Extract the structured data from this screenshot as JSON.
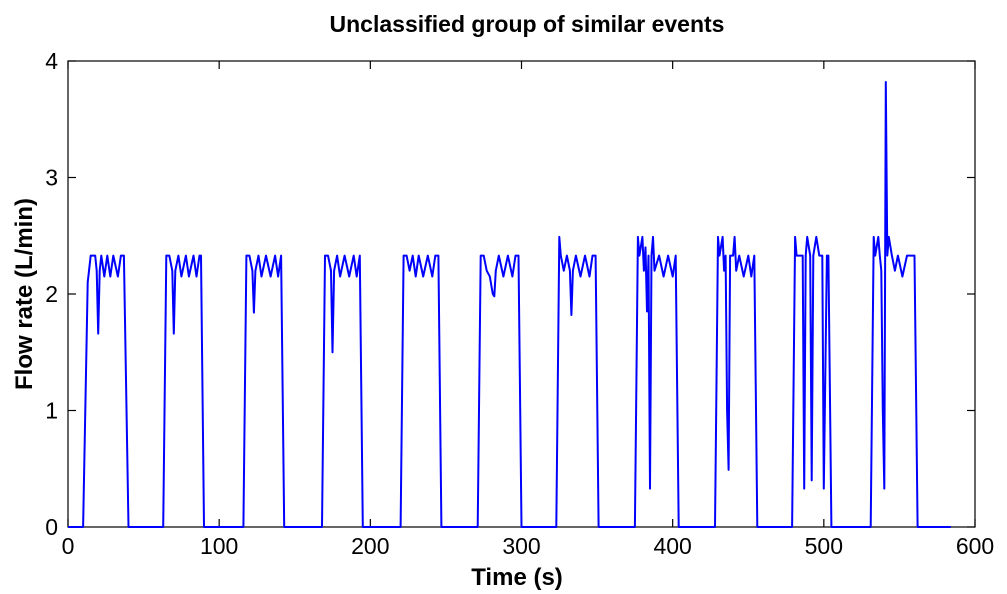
{
  "chart_data": {
    "type": "line",
    "title": "Unclassified group of similar events",
    "xlabel": "Time (s)",
    "ylabel": "Flow rate (L/min)",
    "xlim": [
      0,
      600
    ],
    "ylim": [
      0,
      4
    ],
    "xticks": [
      0,
      100,
      200,
      300,
      400,
      500,
      600
    ],
    "yticks": [
      0,
      1,
      2,
      3,
      4
    ],
    "grid": false,
    "legend": "none",
    "color": "#0000ff",
    "series": [
      {
        "x": [
          0,
          10,
          13,
          15,
          18,
          19,
          20,
          21,
          22,
          24,
          26,
          28,
          30,
          33,
          35,
          37,
          40,
          63,
          65,
          67,
          69,
          70,
          71,
          73,
          75,
          78,
          80,
          83,
          85,
          87,
          88,
          90,
          116,
          118,
          120,
          122,
          123,
          124,
          126,
          128,
          131,
          134,
          137,
          139,
          141,
          143,
          168,
          170,
          172,
          174,
          175,
          176,
          178,
          180,
          183,
          186,
          189,
          191,
          193,
          195,
          220,
          222,
          224,
          226,
          228,
          230,
          232,
          235,
          238,
          241,
          243,
          245,
          247,
          271,
          273,
          275,
          277,
          279,
          281,
          282,
          283,
          285,
          288,
          291,
          294,
          296,
          298,
          300,
          323,
          325,
          326,
          328,
          330,
          332,
          333,
          334,
          336,
          339,
          342,
          345,
          347,
          349,
          351,
          375,
          377,
          378,
          380,
          381,
          382,
          383,
          384,
          385,
          386,
          387,
          388,
          391,
          394,
          397,
          400,
          402,
          404,
          428,
          430,
          431,
          433,
          434,
          435,
          436,
          437,
          438,
          440,
          441,
          442,
          444,
          447,
          450,
          452,
          454,
          456,
          479,
          481,
          482,
          484,
          486,
          487,
          488,
          489,
          491,
          492,
          493,
          495,
          497,
          499,
          500,
          502,
          503,
          505,
          531,
          533,
          534,
          536,
          537,
          538,
          539,
          540,
          541,
          542,
          543,
          545,
          547,
          549,
          552,
          555,
          558,
          560,
          562,
          584
        ],
        "y": [
          0,
          0,
          2.1,
          2.33,
          2.33,
          2.2,
          1.66,
          2.2,
          2.33,
          2.15,
          2.33,
          2.15,
          2.33,
          2.15,
          2.33,
          2.33,
          0,
          0,
          2.33,
          2.33,
          2.2,
          1.66,
          2.2,
          2.33,
          2.15,
          2.33,
          2.15,
          2.33,
          2.15,
          2.33,
          2.33,
          0,
          0,
          2.33,
          2.33,
          2.2,
          1.84,
          2.2,
          2.33,
          2.15,
          2.33,
          2.15,
          2.33,
          2.15,
          2.33,
          0,
          0,
          2.33,
          2.33,
          2.2,
          1.5,
          2.2,
          2.33,
          2.15,
          2.33,
          2.15,
          2.33,
          2.15,
          2.33,
          0,
          0,
          2.33,
          2.33,
          2.2,
          2.33,
          2.15,
          2.33,
          2.15,
          2.33,
          2.15,
          2.33,
          2.33,
          0,
          0,
          2.33,
          2.33,
          2.2,
          2.15,
          2.0,
          1.98,
          2.2,
          2.33,
          2.15,
          2.33,
          2.15,
          2.33,
          2.33,
          0,
          0,
          2.49,
          2.33,
          2.2,
          2.33,
          2.2,
          1.82,
          2.2,
          2.33,
          2.15,
          2.33,
          2.15,
          2.33,
          2.33,
          0,
          0,
          2.49,
          2.33,
          2.49,
          2.2,
          2.4,
          1.85,
          2.33,
          0.33,
          2.33,
          2.49,
          2.2,
          2.33,
          2.15,
          2.33,
          2.15,
          2.33,
          0,
          0,
          2.49,
          2.33,
          2.49,
          2.2,
          2.33,
          1.0,
          0.49,
          2.33,
          2.33,
          2.49,
          2.2,
          2.33,
          2.15,
          2.33,
          2.15,
          2.33,
          0,
          0,
          2.49,
          2.33,
          2.33,
          2.33,
          0.33,
          2.33,
          2.49,
          2.33,
          0.4,
          2.33,
          2.49,
          2.33,
          2.33,
          0.33,
          2.33,
          2.33,
          0,
          0,
          2.49,
          2.33,
          2.49,
          2.33,
          2.2,
          1.0,
          0.33,
          3.82,
          2.33,
          2.49,
          2.33,
          2.2,
          2.33,
          2.15,
          2.33,
          2.33,
          2.33,
          0,
          0
        ]
      }
    ]
  }
}
